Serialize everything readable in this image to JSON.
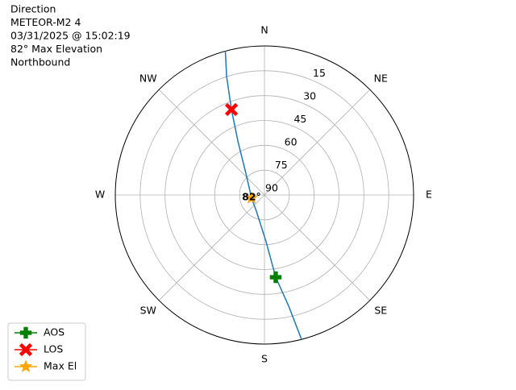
{
  "chart_data": {
    "type": "polar",
    "title": [
      "Direction",
      "METEOR-M2 4",
      "03/31/2025 @ 15:02:19",
      "82° Max Elevation",
      "Northbound"
    ],
    "rlim": [
      90,
      0
    ],
    "rticks": [
      15,
      30,
      45,
      60,
      75,
      90
    ],
    "thetaticks": [
      {
        "value": 0,
        "label": "N"
      },
      {
        "value": 45,
        "label": "NE"
      },
      {
        "value": 90,
        "label": "E"
      },
      {
        "value": 135,
        "label": "SE"
      },
      {
        "value": 180,
        "label": "S"
      },
      {
        "value": 225,
        "label": "SW"
      },
      {
        "value": 270,
        "label": "W"
      },
      {
        "value": 315,
        "label": "NW"
      }
    ],
    "grid": true,
    "legend": "lower left",
    "series": [
      {
        "color": "#1f77b4",
        "marker": "line",
        "azimuth": [
          165.6,
          167.7,
          172.2,
          178.0,
          206.6,
          256.8,
          319.6,
          333.8,
          338.9,
          342.3,
          344.8
        ],
        "elevation": [
          0,
          21.3,
          39.9,
          61.8,
          79.1,
          82,
          72.7,
          53.7,
          34.7,
          14.9,
          0
        ]
      },
      {
        "name": "AOS",
        "color": "#008000",
        "marker": "plus",
        "azimuth": [
          172.2
        ],
        "elevation": [
          39.9
        ]
      },
      {
        "name": "LOS",
        "color": "#ff0000",
        "marker": "x",
        "azimuth": [
          338.9
        ],
        "elevation": [
          34.7
        ]
      },
      {
        "name": "Max El",
        "color": "#ffa500",
        "marker": "star",
        "azimuth": [
          256.8
        ],
        "elevation": [
          82
        ],
        "value_labels": [
          "82°"
        ]
      }
    ]
  }
}
